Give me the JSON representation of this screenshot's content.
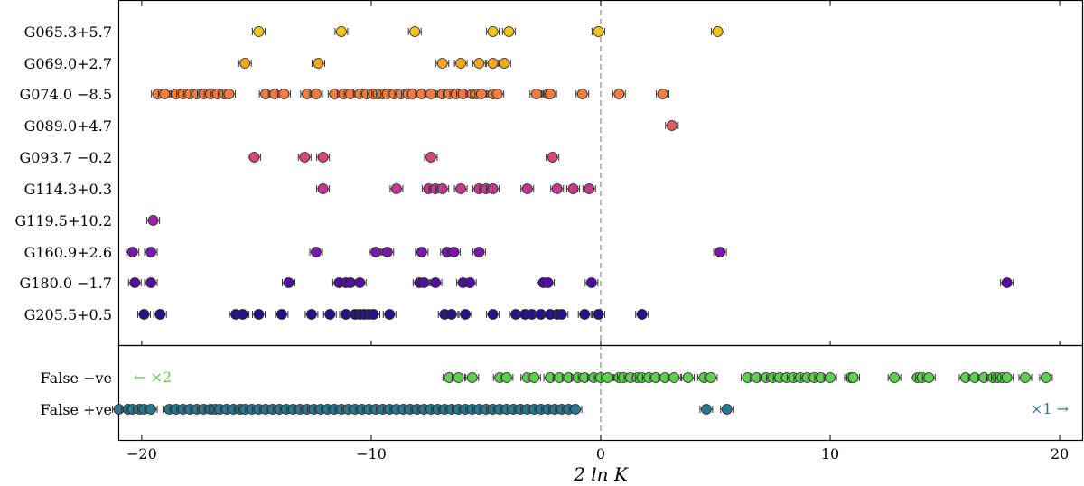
{
  "chart_data": {
    "type": "scatter",
    "title": "",
    "xlabel": "2 ln K",
    "xlim": [
      -21,
      21
    ],
    "xticks": [
      -20,
      -10,
      0,
      10,
      20
    ],
    "xtick_labels": [
      "−20",
      "−10",
      "0",
      "10",
      "20"
    ],
    "reference_line_x": 0,
    "series": [
      {
        "name": "G065.3+5.7",
        "color": "#f5c518",
        "values": [
          -14.9,
          -11.3,
          -8.1,
          -4.7,
          -4.0,
          -0.1,
          5.1
        ]
      },
      {
        "name": "G069.0+2.7",
        "color": "#f5a623",
        "values": [
          -15.5,
          -12.3,
          -6.9,
          -6.1,
          -5.3,
          -4.7,
          -4.2
        ]
      },
      {
        "name": "G074.0 −8.5",
        "color": "#f07c40",
        "values": [
          -19.3,
          -19.0,
          -18.5,
          -18.2,
          -17.9,
          -17.6,
          -17.3,
          -17.0,
          -16.7,
          -16.4,
          -16.2,
          -14.6,
          -14.2,
          -13.8,
          -12.8,
          -12.4,
          -11.6,
          -11.2,
          -10.9,
          -10.5,
          -10.2,
          -9.9,
          -9.7,
          -9.5,
          -9.3,
          -9.0,
          -8.7,
          -8.4,
          -8.2,
          -7.8,
          -7.4,
          -6.9,
          -6.6,
          -6.3,
          -6.0,
          -5.6,
          -5.4,
          -5.2,
          -4.7,
          -4.5,
          -2.8,
          -2.3,
          -2.2,
          -0.8,
          0.8,
          2.7
        ]
      },
      {
        "name": "G089.0+4.7",
        "color": "#e35a5a",
        "values": [
          3.1
        ]
      },
      {
        "name": "G093.7 −0.2",
        "color": "#d24a6e",
        "values": [
          -15.1,
          -12.9,
          -12.1,
          -7.4,
          -2.1
        ]
      },
      {
        "name": "G114.3+0.3",
        "color": "#c13a8e",
        "values": [
          -12.1,
          -8.9,
          -7.5,
          -7.2,
          -6.9,
          -6.1,
          -5.3,
          -5.0,
          -4.7,
          -3.2,
          -1.9,
          -1.2,
          -0.5
        ]
      },
      {
        "name": "G119.5+10.2",
        "color": "#9a22a8",
        "values": [
          -19.5
        ]
      },
      {
        "name": "G160.9+2.6",
        "color": "#7a18ab",
        "values": [
          -20.4,
          -19.6,
          -12.4,
          -9.8,
          -9.3,
          -7.8,
          -6.7,
          -6.4,
          -5.3,
          5.2
        ]
      },
      {
        "name": "G180.0 −1.7",
        "color": "#5210a3",
        "values": [
          -20.3,
          -19.6,
          -13.6,
          -11.4,
          -11.1,
          -10.9,
          -10.5,
          -7.9,
          -7.7,
          -7.2,
          -6.0,
          -5.7,
          -2.5,
          -2.3,
          -0.4,
          17.7
        ]
      },
      {
        "name": "G205.5+0.5",
        "color": "#22148a",
        "values": [
          -19.9,
          -19.2,
          -15.9,
          -15.6,
          -14.9,
          -13.9,
          -12.6,
          -11.8,
          -11.1,
          -10.7,
          -10.5,
          -10.3,
          -10.1,
          -9.9,
          -9.2,
          -6.8,
          -6.5,
          -5.9,
          -4.7,
          -3.7,
          -3.3,
          -3.0,
          -2.6,
          -2.2,
          -1.9,
          -1.7,
          -0.7,
          -0.1,
          1.8
        ]
      },
      {
        "name": "False  −ve",
        "color": "#5fcf50",
        "values": [
          -6.6,
          -6.2,
          -5.6,
          -4.4,
          -4.1,
          -3.2,
          -2.9,
          -2.2,
          -1.8,
          -1.4,
          -1.0,
          -0.7,
          -0.3,
          0.0,
          0.3,
          0.8,
          1.0,
          1.3,
          1.6,
          1.8,
          2.1,
          2.4,
          2.8,
          3.2,
          3.8,
          4.5,
          4.8,
          6.4,
          6.8,
          7.2,
          7.5,
          7.8,
          8.1,
          8.4,
          8.7,
          9.0,
          9.3,
          9.6,
          10.0,
          10.9,
          11.0,
          12.8,
          13.8,
          14.0,
          14.3,
          15.9,
          16.3,
          16.7,
          17.1,
          17.3,
          17.5,
          17.7,
          18.5,
          19.4
        ]
      },
      {
        "name": "False  +ve",
        "color": "#2d7791",
        "values": [
          -21.0,
          -20.6,
          -20.4,
          -20.1,
          -19.9,
          -19.6,
          -18.8,
          -18.5,
          -18.2,
          -17.9,
          -17.6,
          -17.3,
          -17.0,
          -16.8,
          -16.6,
          -16.3,
          -16.0,
          -15.7,
          -15.5,
          -15.2,
          -14.9,
          -14.6,
          -14.3,
          -14.0,
          -13.7,
          -13.4,
          -13.1,
          -12.8,
          -12.5,
          -12.2,
          -11.9,
          -11.6,
          -11.3,
          -11.0,
          -10.7,
          -10.4,
          -10.1,
          -9.8,
          -9.5,
          -9.2,
          -8.9,
          -8.6,
          -8.3,
          -8.0,
          -7.7,
          -7.4,
          -7.1,
          -6.8,
          -6.5,
          -6.2,
          -5.9,
          -5.6,
          -5.3,
          -5.0,
          -4.7,
          -4.4,
          -4.1,
          -3.8,
          -3.5,
          -3.2,
          -2.9,
          -2.6,
          -2.3,
          -2.0,
          -1.7,
          -1.4,
          -1.1,
          4.6,
          5.5
        ]
      }
    ],
    "annotations": [
      {
        "text": "← ×2",
        "color": "#5fcf50",
        "series": "False  −ve",
        "direction": "left"
      },
      {
        "text": "×1 →",
        "color": "#2d7791",
        "series": "False  +ve",
        "direction": "right"
      }
    ]
  }
}
